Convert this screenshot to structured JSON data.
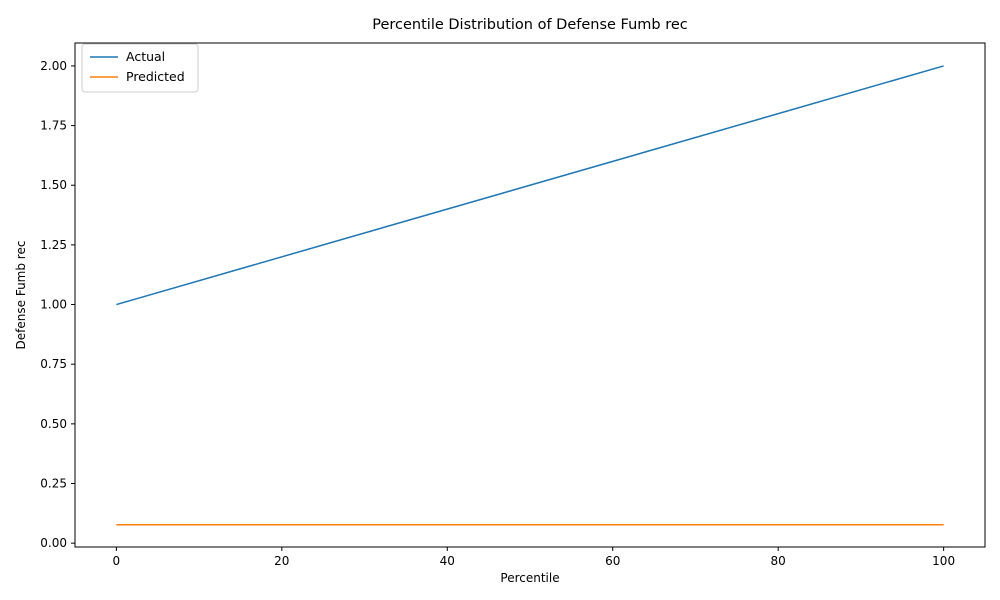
{
  "chart_data": {
    "type": "line",
    "title": "Percentile Distribution of Defense Fumb rec",
    "xlabel": "Percentile",
    "ylabel": "Defense Fumb rec",
    "xlim": [
      -5,
      105
    ],
    "ylim": [
      -0.0161,
      2.0961
    ],
    "xticks": [
      0,
      20,
      40,
      60,
      80,
      100
    ],
    "yticks": [
      0.0,
      0.25,
      0.5,
      0.75,
      1.0,
      1.25,
      1.5,
      1.75,
      2.0
    ],
    "ytick_labels": [
      "0.00",
      "0.25",
      "0.50",
      "0.75",
      "1.00",
      "1.25",
      "1.50",
      "1.75",
      "2.00"
    ],
    "grid": false,
    "legend_position": "top-left",
    "series": [
      {
        "name": "Actual",
        "color": "#1f77b4",
        "x": [
          0,
          100
        ],
        "y": [
          1.0,
          2.0
        ]
      },
      {
        "name": "Predicted",
        "color": "#ff7f0e",
        "x": [
          0,
          100
        ],
        "y": [
          0.077,
          0.077
        ]
      }
    ]
  }
}
